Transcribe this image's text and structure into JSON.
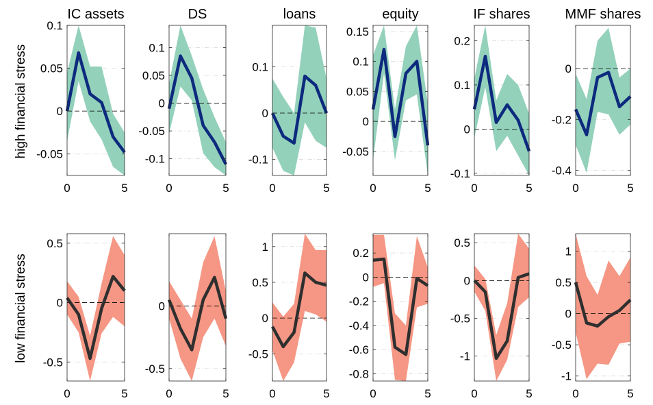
{
  "row_labels": [
    "high financial stress",
    "low financial stress"
  ],
  "colors": {
    "high_band": "#93d1bb",
    "high_line": "#0d2a7e",
    "low_band": "#f59784",
    "low_line": "#2f2f2f",
    "zero_line": "#000000",
    "grid": "#d9d9d9"
  },
  "chart_data": [
    {
      "type": "line",
      "title": "IC assets",
      "row": "high financial stress",
      "xlim": [
        0,
        5
      ],
      "ylim": [
        -0.075,
        0.1
      ],
      "x": [
        0,
        1,
        2,
        3,
        4,
        5
      ],
      "xticks": [
        0,
        5
      ],
      "xticklabels": [
        "0",
        "5"
      ],
      "yticks": [
        -0.05,
        0,
        0.05,
        0.1
      ],
      "yticklabels": [
        "-0.05",
        "0",
        "0.05",
        "0.1"
      ],
      "series": [
        {
          "values": [
            0.0,
            0.068,
            0.02,
            0.01,
            -0.03,
            -0.048
          ]
        }
      ],
      "band_upper": [
        0.045,
        0.1,
        0.052,
        0.052,
        -0.003,
        -0.025
      ],
      "band_lower": [
        -0.035,
        0.035,
        -0.012,
        -0.033,
        -0.065,
        -0.075
      ],
      "grid": "dash-dot horizontal"
    },
    {
      "type": "line",
      "title": "DS",
      "row": "high financial stress",
      "xlim": [
        0,
        5
      ],
      "ylim": [
        -0.13,
        0.14
      ],
      "x": [
        0,
        1,
        2,
        3,
        4,
        5
      ],
      "xticks": [
        0,
        5
      ],
      "xticklabels": [
        "0",
        "5"
      ],
      "yticks": [
        -0.1,
        -0.05,
        0,
        0.05,
        0.1
      ],
      "yticklabels": [
        "-0.1",
        "-0.05",
        "0",
        "0.05",
        "0.1"
      ],
      "series": [
        {
          "values": [
            -0.01,
            0.085,
            0.045,
            -0.04,
            -0.07,
            -0.11
          ]
        }
      ],
      "band_upper": [
        0.035,
        0.14,
        0.085,
        0.025,
        -0.025,
        -0.07
      ],
      "band_lower": [
        -0.055,
        0.03,
        0.005,
        -0.09,
        -0.115,
        -0.13
      ],
      "grid": "dash-dot horizontal"
    },
    {
      "type": "line",
      "title": "loans",
      "row": "high financial stress",
      "xlim": [
        0,
        5
      ],
      "ylim": [
        -0.135,
        0.19
      ],
      "x": [
        0,
        1,
        2,
        3,
        4,
        5
      ],
      "xticks": [
        0,
        5
      ],
      "xticklabels": [
        "0",
        "5"
      ],
      "yticks": [
        -0.1,
        0,
        0.1
      ],
      "yticklabels": [
        "-0.1",
        "0",
        "0.1"
      ],
      "series": [
        {
          "values": [
            0.0,
            -0.05,
            -0.065,
            0.08,
            0.06,
            0.0
          ]
        }
      ],
      "band_upper": [
        0.075,
        0.035,
        0.0,
        0.19,
        0.185,
        0.075
      ],
      "band_lower": [
        -0.075,
        -0.125,
        -0.135,
        -0.02,
        -0.06,
        -0.075
      ],
      "grid": "dash-dot horizontal"
    },
    {
      "type": "line",
      "title": "equity",
      "row": "high financial stress",
      "xlim": [
        0,
        5
      ],
      "ylim": [
        -0.09,
        0.16
      ],
      "x": [
        0,
        1,
        2,
        3,
        4,
        5
      ],
      "xticks": [
        0,
        5
      ],
      "xticklabels": [
        "0",
        "5"
      ],
      "yticks": [
        -0.05,
        0,
        0.05,
        0.1,
        0.15
      ],
      "yticklabels": [
        "-0.05",
        "0",
        "0.05",
        "0.1",
        "0.15"
      ],
      "series": [
        {
          "values": [
            0.02,
            0.12,
            -0.025,
            0.08,
            0.1,
            -0.04
          ]
        }
      ],
      "band_upper": [
        0.11,
        0.16,
        0.02,
        0.125,
        0.16,
        0.03
      ],
      "band_lower": [
        -0.065,
        0.08,
        -0.065,
        0.035,
        0.045,
        -0.09
      ],
      "grid": "dash-dot horizontal"
    },
    {
      "type": "line",
      "title": "IF shares",
      "row": "high financial stress",
      "xlim": [
        0,
        5
      ],
      "ylim": [
        -0.105,
        0.235
      ],
      "x": [
        0,
        1,
        2,
        3,
        4,
        5
      ],
      "xticks": [
        0,
        5
      ],
      "xticklabels": [
        "0",
        "5"
      ],
      "yticks": [
        -0.1,
        0,
        0.1,
        0.2
      ],
      "yticklabels": [
        "-0.1",
        "0",
        "0.1",
        "0.2"
      ],
      "series": [
        {
          "values": [
            0.045,
            0.165,
            0.015,
            0.055,
            0.02,
            -0.05
          ]
        }
      ],
      "band_upper": [
        0.115,
        0.235,
        0.065,
        0.125,
        0.1,
        0.035
      ],
      "band_lower": [
        -0.02,
        0.095,
        -0.05,
        -0.015,
        -0.06,
        -0.105
      ],
      "grid": "dash-dot horizontal"
    },
    {
      "type": "line",
      "title": "MMF shares",
      "row": "high financial stress",
      "xlim": [
        0,
        5
      ],
      "ylim": [
        -0.42,
        0.17
      ],
      "x": [
        0,
        1,
        2,
        3,
        4,
        5
      ],
      "xticks": [
        0,
        5
      ],
      "xticklabels": [
        "0",
        "5"
      ],
      "yticks": [
        -0.4,
        -0.2,
        0
      ],
      "yticklabels": [
        "-0.4",
        "-0.2",
        "0"
      ],
      "series": [
        {
          "values": [
            -0.16,
            -0.26,
            -0.035,
            -0.015,
            -0.15,
            -0.11
          ]
        }
      ],
      "band_upper": [
        -0.02,
        -0.12,
        0.11,
        0.16,
        -0.035,
        0.0
      ],
      "band_lower": [
        -0.3,
        -0.41,
        -0.17,
        -0.18,
        -0.26,
        -0.22
      ],
      "grid": "dash-dot horizontal"
    },
    {
      "type": "line",
      "title": "",
      "row": "low financial stress",
      "xlim": [
        0,
        5
      ],
      "ylim": [
        -0.66,
        0.58
      ],
      "x": [
        0,
        1,
        2,
        3,
        4,
        5
      ],
      "xticks": [
        0,
        5
      ],
      "xticklabels": [
        "0",
        "5"
      ],
      "yticks": [
        -0.5,
        0,
        0.5
      ],
      "yticklabels": [
        "-0.5",
        "0",
        "0.5"
      ],
      "series": [
        {
          "values": [
            0.04,
            -0.1,
            -0.47,
            -0.05,
            0.22,
            0.1
          ]
        }
      ],
      "band_upper": [
        0.18,
        0.05,
        -0.28,
        0.16,
        0.56,
        0.4
      ],
      "band_lower": [
        -0.1,
        -0.25,
        -0.66,
        -0.26,
        -0.12,
        -0.2
      ],
      "grid": "dash-dot horizontal"
    },
    {
      "type": "line",
      "title": "",
      "row": "low financial stress",
      "xlim": [
        0,
        5
      ],
      "ylim": [
        -0.6,
        0.58
      ],
      "x": [
        0,
        1,
        2,
        3,
        4,
        5
      ],
      "xticks": [
        0,
        5
      ],
      "xticklabels": [
        "0",
        "5"
      ],
      "yticks": [
        -0.5,
        0
      ],
      "yticklabels": [
        "-0.5",
        "0"
      ],
      "series": [
        {
          "values": [
            0.05,
            -0.18,
            -0.35,
            0.05,
            0.23,
            -0.1
          ]
        }
      ],
      "band_upper": [
        0.2,
        0.05,
        -0.1,
        0.35,
        0.56,
        0.12
      ],
      "band_lower": [
        -0.1,
        -0.42,
        -0.6,
        -0.25,
        -0.1,
        -0.32
      ],
      "grid": "dash-dot horizontal"
    },
    {
      "type": "line",
      "title": "",
      "row": "low financial stress",
      "xlim": [
        0,
        5
      ],
      "ylim": [
        -0.88,
        1.18
      ],
      "x": [
        0,
        1,
        2,
        3,
        4,
        5
      ],
      "xticks": [
        0,
        5
      ],
      "xticklabels": [
        "0",
        "5"
      ],
      "yticks": [
        -0.5,
        0,
        0.5,
        1
      ],
      "yticklabels": [
        "-0.5",
        "0",
        "0.5",
        "1"
      ],
      "series": [
        {
          "values": [
            -0.12,
            -0.4,
            -0.2,
            0.63,
            0.5,
            0.46
          ]
        }
      ],
      "band_upper": [
        0.22,
        0.02,
        0.2,
        1.18,
        0.95,
        0.95
      ],
      "band_lower": [
        -0.45,
        -0.88,
        -0.62,
        0.1,
        0.05,
        -0.05
      ],
      "grid": "dash-dot horizontal"
    },
    {
      "type": "line",
      "title": "",
      "row": "low financial stress",
      "xlim": [
        0,
        5
      ],
      "ylim": [
        -0.86,
        0.36
      ],
      "x": [
        0,
        1,
        2,
        3,
        4,
        5
      ],
      "xticks": [
        0,
        5
      ],
      "xticklabels": [
        "0",
        "5"
      ],
      "yticks": [
        -0.8,
        -0.6,
        -0.4,
        -0.2,
        0,
        0.2
      ],
      "yticklabels": [
        "-0.8",
        "-0.6",
        "-0.4",
        "-0.2",
        "0",
        "0.2"
      ],
      "series": [
        {
          "values": [
            0.14,
            0.15,
            -0.58,
            -0.64,
            -0.01,
            -0.07
          ]
        }
      ],
      "band_upper": [
        0.35,
        0.35,
        -0.3,
        -0.4,
        0.34,
        0.08
      ],
      "band_lower": [
        -0.08,
        -0.05,
        -0.85,
        -0.86,
        -0.25,
        -0.22
      ],
      "grid": "dash-dot horizontal"
    },
    {
      "type": "line",
      "title": "",
      "row": "low financial stress",
      "xlim": [
        0,
        5
      ],
      "ylim": [
        -1.33,
        0.62
      ],
      "x": [
        0,
        1,
        2,
        3,
        4,
        5
      ],
      "xticks": [
        0,
        5
      ],
      "xticklabels": [
        "0",
        "5"
      ],
      "yticks": [
        -1,
        -0.5,
        0,
        0.5
      ],
      "yticklabels": [
        "-1",
        "-0.5",
        "0",
        "0.5"
      ],
      "series": [
        {
          "values": [
            0.0,
            -0.15,
            -1.03,
            -0.8,
            0.04,
            0.09
          ]
        }
      ],
      "band_upper": [
        0.2,
        0.02,
        -0.72,
        -0.3,
        0.62,
        0.42
      ],
      "band_lower": [
        -0.15,
        -0.4,
        -1.33,
        -1.05,
        -0.35,
        -0.22
      ],
      "grid": "dash-dot horizontal"
    },
    {
      "type": "line",
      "title": "",
      "row": "low financial stress",
      "xlim": [
        0,
        5
      ],
      "ylim": [
        -1.08,
        1.28
      ],
      "x": [
        0,
        1,
        2,
        3,
        4,
        5
      ],
      "xticks": [
        0,
        5
      ],
      "xticklabels": [
        "0",
        "5"
      ],
      "yticks": [
        -1,
        -0.5,
        0,
        0.5,
        1
      ],
      "yticklabels": [
        "-1",
        "-0.5",
        "0",
        "0.5",
        "1"
      ],
      "series": [
        {
          "values": [
            0.5,
            -0.15,
            -0.2,
            -0.05,
            0.05,
            0.22
          ]
        }
      ],
      "band_upper": [
        1.28,
        0.6,
        0.3,
        0.85,
        0.6,
        0.9
      ],
      "band_lower": [
        -0.3,
        -1.05,
        -0.8,
        -0.82,
        -0.48,
        -0.45
      ],
      "grid": "dash-dot horizontal"
    }
  ]
}
